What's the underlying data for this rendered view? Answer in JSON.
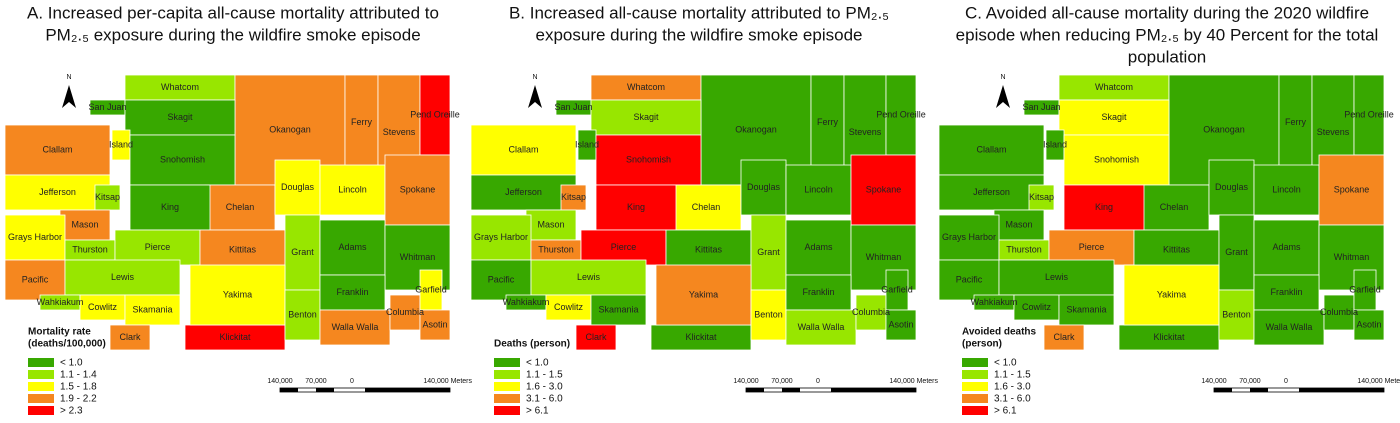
{
  "north": "N",
  "legend_colors": [
    "#38a800",
    "#98e600",
    "#ffff00",
    "#f5871f",
    "#ff0000"
  ],
  "scale_labels": [
    "140,000",
    "70,000",
    "0",
    "140,000 Meters"
  ],
  "counties": [
    "Whatcom",
    "Okanogan",
    "Ferry",
    "Stevens",
    "Pend Oreille",
    "San Juan",
    "Skagit",
    "Clallam",
    "Jefferson",
    "Island",
    "Snohomish",
    "Chelan",
    "Douglas",
    "Lincoln",
    "Spokane",
    "Kitsap",
    "Mason",
    "King",
    "Grays Harbor",
    "Thurston",
    "Pierce",
    "Kittitas",
    "Grant",
    "Adams",
    "Whitman",
    "Pacific",
    "Lewis",
    "Wahkiakum",
    "Cowlitz",
    "Skamania",
    "Clark",
    "Klickitat",
    "Yakima",
    "Benton",
    "Franklin",
    "Walla Walla",
    "Columbia",
    "Garfield",
    "Asotin"
  ],
  "panels": [
    {
      "title": [
        "A. Increased per-capita all-cause mortality attributed to",
        "PM₂.₅ exposure during the wildfire smoke episode"
      ],
      "legend": {
        "title": [
          "Mortality rate",
          "(deaths/100,000)"
        ],
        "labels": [
          "< 1.0",
          "1.1 - 1.4",
          "1.5 - 1.8",
          "1.9 - 2.2",
          "> 2.3"
        ]
      },
      "classes": [
        1,
        3,
        3,
        3,
        4,
        0,
        0,
        3,
        2,
        2,
        0,
        3,
        2,
        2,
        3,
        1,
        3,
        0,
        2,
        1,
        1,
        3,
        1,
        0,
        0,
        3,
        1,
        1,
        2,
        2,
        3,
        4,
        2,
        1,
        0,
        3,
        3,
        2,
        3
      ]
    },
    {
      "title": [
        "B. Increased all-cause mortality attributed to PM₂.₅",
        "exposure during the wildfire smoke episode"
      ],
      "legend": {
        "title": [
          "Deaths (person)"
        ],
        "labels": [
          "< 1.0",
          "1.1 - 1.5",
          "1.6 - 3.0",
          "3.1 - 6.0",
          "> 6.1"
        ]
      },
      "classes": [
        3,
        0,
        0,
        0,
        0,
        0,
        1,
        2,
        0,
        0,
        4,
        2,
        0,
        0,
        4,
        3,
        1,
        4,
        1,
        3,
        4,
        0,
        1,
        0,
        0,
        0,
        1,
        0,
        2,
        0,
        4,
        0,
        3,
        2,
        0,
        1,
        1,
        0,
        0
      ]
    },
    {
      "title": [
        "C. Avoided all-cause mortality during the 2020 wildfire",
        "episode when reducing PM₂.₅ by 40 Percent for the total",
        "population"
      ],
      "legend": {
        "title": [
          "Avoided deaths",
          "(person)"
        ],
        "labels": [
          "< 1.0",
          "1.1 - 1.5",
          "1.6 - 3.0",
          "3.1 - 6.0",
          "> 6.1"
        ]
      },
      "classes": [
        1,
        0,
        0,
        0,
        0,
        0,
        2,
        0,
        0,
        0,
        2,
        0,
        0,
        0,
        3,
        1,
        0,
        4,
        0,
        1,
        3,
        0,
        0,
        0,
        0,
        0,
        0,
        0,
        0,
        0,
        3,
        0,
        2,
        1,
        0,
        0,
        0,
        0,
        0
      ]
    }
  ]
}
